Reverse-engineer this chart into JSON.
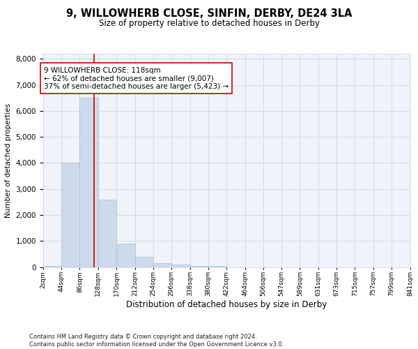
{
  "title": "9, WILLOWHERB CLOSE, SINFIN, DERBY, DE24 3LA",
  "subtitle": "Size of property relative to detached houses in Derby",
  "xlabel": "Distribution of detached houses by size in Derby",
  "ylabel": "Number of detached properties",
  "bin_edges": [
    2,
    44,
    86,
    128,
    170,
    212,
    254,
    296,
    338,
    380,
    422,
    464,
    506,
    547,
    589,
    631,
    673,
    715,
    757,
    799,
    841
  ],
  "bar_heights": [
    50,
    4000,
    6500,
    2600,
    900,
    400,
    150,
    100,
    50,
    50,
    0,
    0,
    0,
    0,
    0,
    0,
    0,
    0,
    0,
    0
  ],
  "bar_color": "#ccdaeb",
  "bar_edge_color": "#aabdd4",
  "vline_x": 118,
  "vline_color": "#cc0000",
  "annotation_line1": "9 WILLOWHERB CLOSE: 118sqm",
  "annotation_line2": "← 62% of detached houses are smaller (9,007)",
  "annotation_line3": "37% of semi-detached houses are larger (5,423) →",
  "annotation_box_color": "#ffffff",
  "annotation_box_edge_color": "#cc0000",
  "ylim": [
    0,
    8200
  ],
  "yticks": [
    0,
    1000,
    2000,
    3000,
    4000,
    5000,
    6000,
    7000,
    8000
  ],
  "footer_line1": "Contains HM Land Registry data © Crown copyright and database right 2024.",
  "footer_line2": "Contains public sector information licensed under the Open Government Licence v3.0.",
  "bg_color": "#ffffff",
  "plot_bg_color": "#f0f4fa",
  "grid_color": "#c8d0dc",
  "title_fontsize": 10.5,
  "subtitle_fontsize": 8.5
}
